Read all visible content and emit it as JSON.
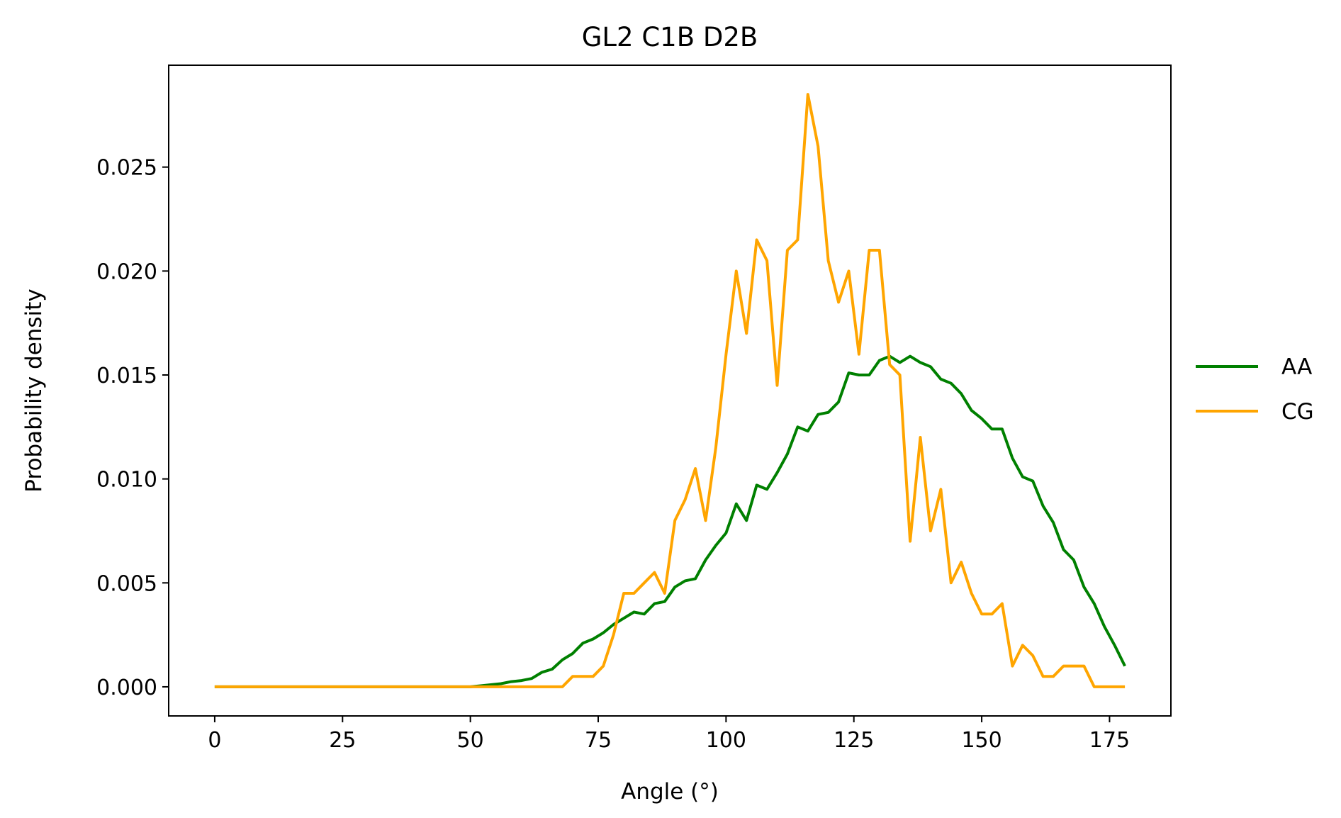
{
  "chart_data": {
    "type": "line",
    "title": "GL2 C1B D2B",
    "xlabel": "Angle (°)",
    "ylabel": "Probability density",
    "xlim": [
      -9,
      187
    ],
    "ylim": [
      -0.0014,
      0.0299
    ],
    "xticks": [
      0,
      25,
      50,
      75,
      100,
      125,
      150,
      175
    ],
    "xtick_labels": [
      "0",
      "25",
      "50",
      "75",
      "100",
      "125",
      "150",
      "175"
    ],
    "yticks": [
      0,
      0.005,
      0.01,
      0.015,
      0.02,
      0.025
    ],
    "ytick_labels": [
      "0.000",
      "0.005",
      "0.010",
      "0.015",
      "0.020",
      "0.025"
    ],
    "grid": false,
    "legend_position": "outside-right",
    "x": [
      0,
      2,
      4,
      6,
      8,
      10,
      12,
      14,
      16,
      18,
      20,
      22,
      24,
      26,
      28,
      30,
      32,
      34,
      36,
      38,
      40,
      42,
      44,
      46,
      48,
      50,
      52,
      54,
      56,
      58,
      60,
      62,
      64,
      66,
      68,
      70,
      72,
      74,
      76,
      78,
      80,
      82,
      84,
      86,
      88,
      90,
      92,
      94,
      96,
      98,
      100,
      102,
      104,
      106,
      108,
      110,
      112,
      114,
      116,
      118,
      120,
      122,
      124,
      126,
      128,
      130,
      132,
      134,
      136,
      138,
      140,
      142,
      144,
      146,
      148,
      150,
      152,
      154,
      156,
      158,
      160,
      162,
      164,
      166,
      168,
      170,
      172,
      174,
      176,
      178
    ],
    "series": [
      {
        "name": "AA",
        "color": "#008000",
        "values": [
          0,
          0,
          0,
          0,
          0,
          0,
          0,
          0,
          0,
          0,
          0,
          0,
          0,
          0,
          0,
          0,
          0,
          0,
          0,
          0,
          0,
          0,
          0,
          0,
          0,
          0,
          5e-05,
          0.0001,
          0.00015,
          0.00025,
          0.0003,
          0.0004,
          0.0007,
          0.00085,
          0.0013,
          0.0016,
          0.0021,
          0.0023,
          0.0026,
          0.003,
          0.0033,
          0.0036,
          0.0035,
          0.004,
          0.0041,
          0.0048,
          0.0051,
          0.0052,
          0.0061,
          0.0068,
          0.0074,
          0.0088,
          0.008,
          0.0097,
          0.0095,
          0.0103,
          0.0112,
          0.0125,
          0.0123,
          0.0131,
          0.0132,
          0.0137,
          0.0151,
          0.015,
          0.015,
          0.0157,
          0.0159,
          0.0156,
          0.0159,
          0.0156,
          0.0154,
          0.0148,
          0.0146,
          0.0141,
          0.0133,
          0.0129,
          0.0124,
          0.0124,
          0.011,
          0.0101,
          0.0099,
          0.0087,
          0.0079,
          0.0066,
          0.0061,
          0.0048,
          0.004,
          0.0029,
          0.002,
          0.001
        ]
      },
      {
        "name": "CG",
        "color": "#FFA500",
        "values": [
          0,
          0,
          0,
          0,
          0,
          0,
          0,
          0,
          0,
          0,
          0,
          0,
          0,
          0,
          0,
          0,
          0,
          0,
          0,
          0,
          0,
          0,
          0,
          0,
          0,
          0,
          0,
          0,
          0,
          0,
          0,
          0,
          0,
          0,
          0,
          0.0005,
          0.0005,
          0.0005,
          0.001,
          0.0025,
          0.0045,
          0.0045,
          0.005,
          0.0055,
          0.0045,
          0.008,
          0.009,
          0.0105,
          0.008,
          0.0115,
          0.016,
          0.02,
          0.017,
          0.0215,
          0.0205,
          0.0145,
          0.021,
          0.0215,
          0.0285,
          0.026,
          0.0205,
          0.0185,
          0.02,
          0.016,
          0.021,
          0.021,
          0.0155,
          0.015,
          0.007,
          0.012,
          0.0075,
          0.0095,
          0.005,
          0.006,
          0.0045,
          0.0035,
          0.0035,
          0.004,
          0.001,
          0.002,
          0.0015,
          0.0005,
          0.0005,
          0.001,
          0.001,
          0.001,
          0,
          0,
          0,
          0
        ]
      }
    ]
  }
}
